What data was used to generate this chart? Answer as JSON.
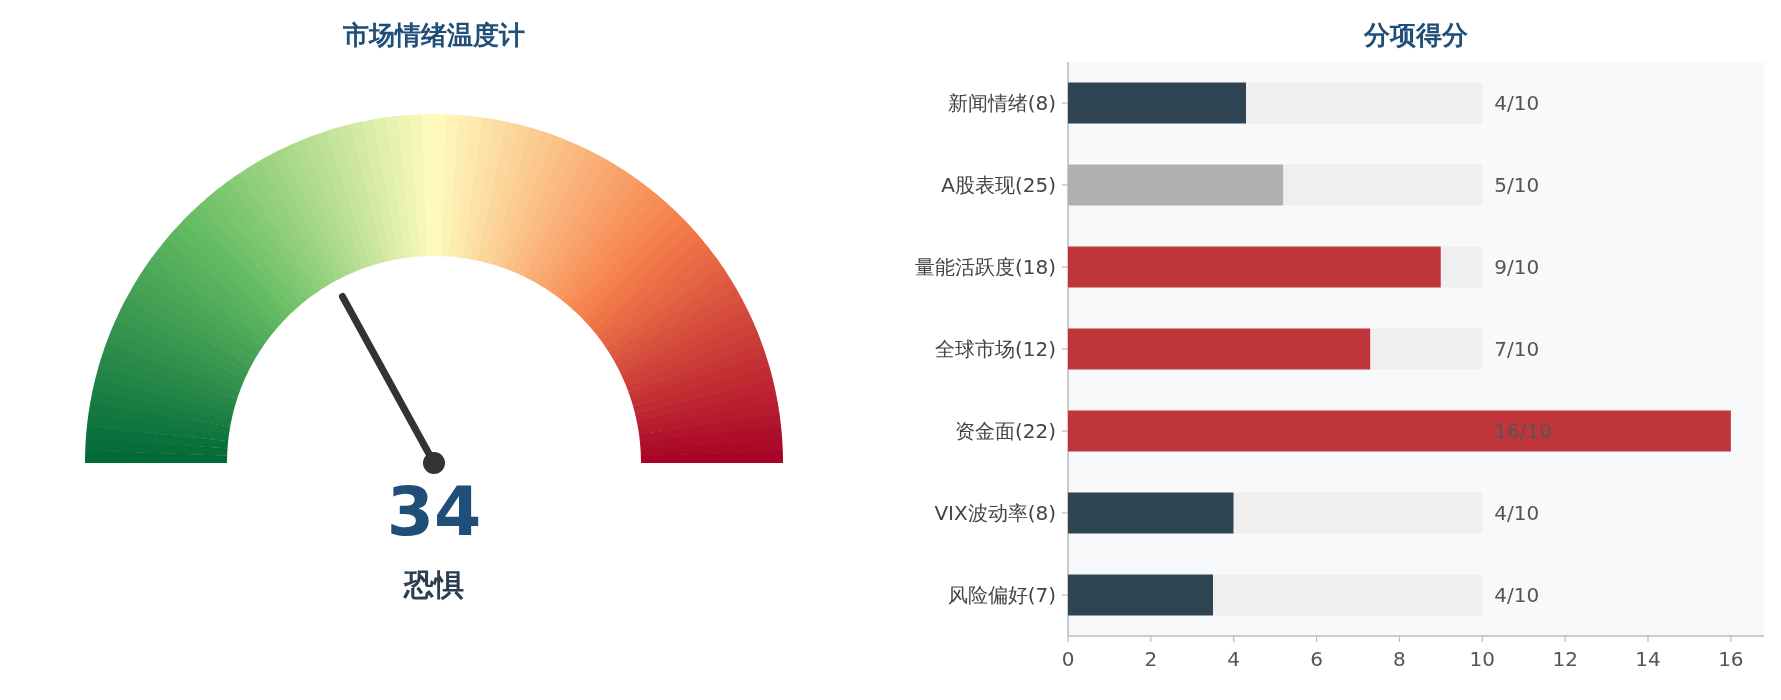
{
  "chart_data": [
    {
      "type": "other",
      "title": "市场情绪温度计",
      "annotations": [
        "34",
        "恐惧"
      ]
    },
    {
      "type": "bar",
      "orientation": "horizontal",
      "stacked": true,
      "title": "分项得分",
      "categories": [
        "新闻情绪(8)",
        "A股表现(25)",
        "量能活跃度(18)",
        "全球市场(12)",
        "资金面(22)",
        "VIX波动率(8)",
        "风险偏好(7)"
      ],
      "xlim": [
        0,
        16.8
      ],
      "xticks": [
        0,
        2,
        4,
        6,
        8,
        10,
        12,
        14,
        16
      ],
      "series": [
        {
          "colors": [
            "#2e4453",
            "#b0b0b0",
            "#c0353a",
            "#c0353a",
            "#c0353a",
            "#2e4453",
            "#2e4453"
          ],
          "values": [
            4.3,
            5.2,
            9,
            7.3,
            16,
            4,
            3.5
          ]
        },
        {
          "color": "#efefef",
          "values": [
            5.7,
            4.8,
            1,
            2.7,
            null,
            6,
            6.5
          ]
        }
      ],
      "annotations": [
        "4/10",
        "5/10",
        "9/10",
        "7/10",
        "16/10",
        "4/10",
        "4/10"
      ]
    }
  ]
}
